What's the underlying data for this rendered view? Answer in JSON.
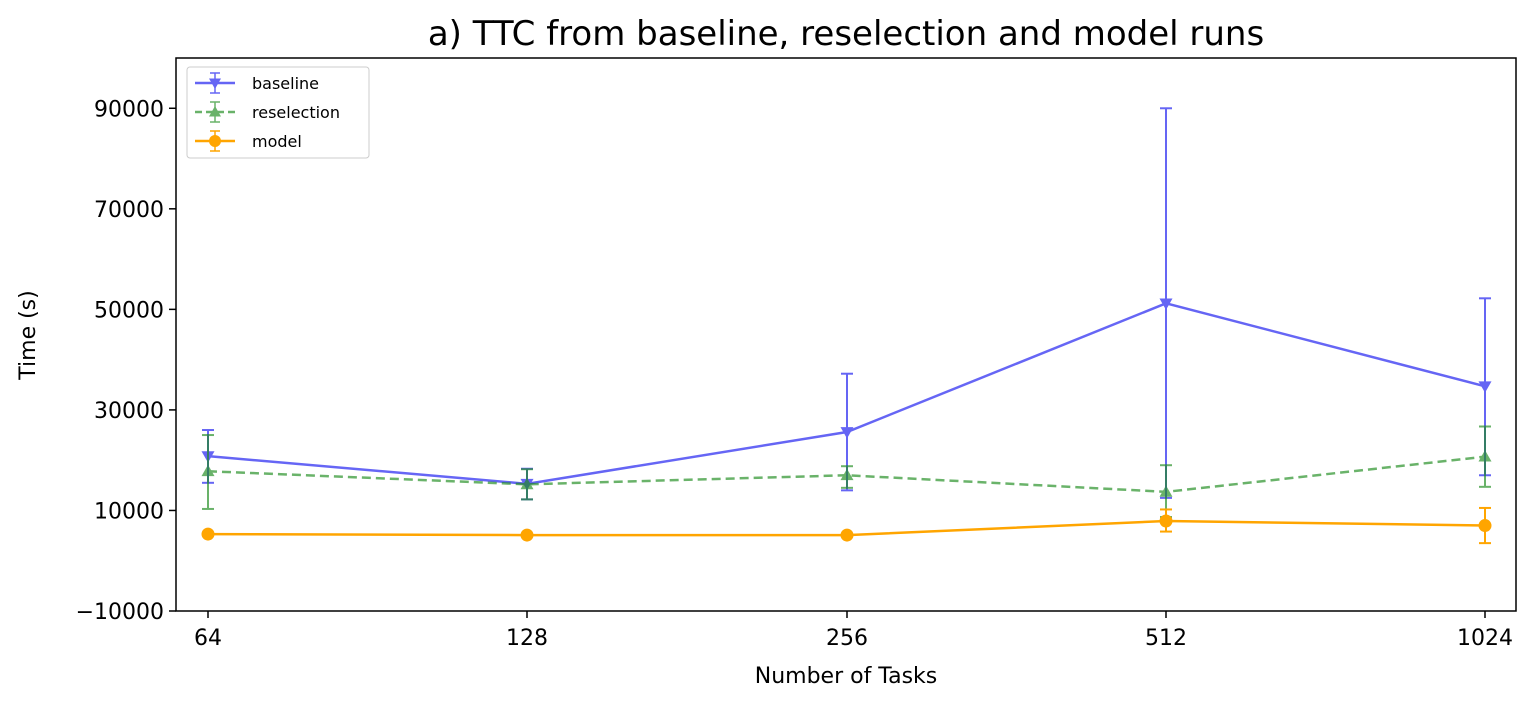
{
  "chart_data": {
    "type": "line",
    "title": "a) TTC from baseline, reselection and model runs",
    "xlabel": "Number of Tasks",
    "ylabel": "Time (s)",
    "x": [
      "64",
      "128",
      "256",
      "512",
      "1024"
    ],
    "ylim": [
      -10000,
      100000
    ],
    "yticks": [
      "−10000",
      "10000",
      "30000",
      "50000",
      "70000",
      "90000"
    ],
    "ytick_values": [
      -10000,
      10000,
      30000,
      50000,
      70000,
      90000
    ],
    "grid": false,
    "legend_position": "top-left",
    "series": [
      {
        "name": "baseline",
        "color": "#0000ee",
        "marker": "triangle-down",
        "line": "solid",
        "values": [
          20800,
          15300,
          25600,
          51200,
          34700
        ],
        "err_low": [
          15500,
          12200,
          14000,
          12500,
          17000
        ],
        "err_high": [
          26000,
          18300,
          37200,
          90000,
          52200
        ]
      },
      {
        "name": "reselection",
        "color": "#1a8a1a",
        "marker": "triangle-up",
        "line": "dashed",
        "values": [
          17800,
          15200,
          17000,
          13700,
          20700
        ],
        "err_low": [
          10300,
          12200,
          14500,
          8700,
          14700
        ],
        "err_high": [
          25000,
          18200,
          18800,
          19000,
          26700
        ]
      },
      {
        "name": "model",
        "color": "#ffa500",
        "marker": "circle",
        "line": "solid",
        "values": [
          5300,
          5100,
          5100,
          7900,
          7000
        ],
        "err_low": [
          5300,
          5100,
          5100,
          5800,
          3500
        ],
        "err_high": [
          5300,
          5100,
          5100,
          10200,
          10500
        ]
      }
    ]
  }
}
